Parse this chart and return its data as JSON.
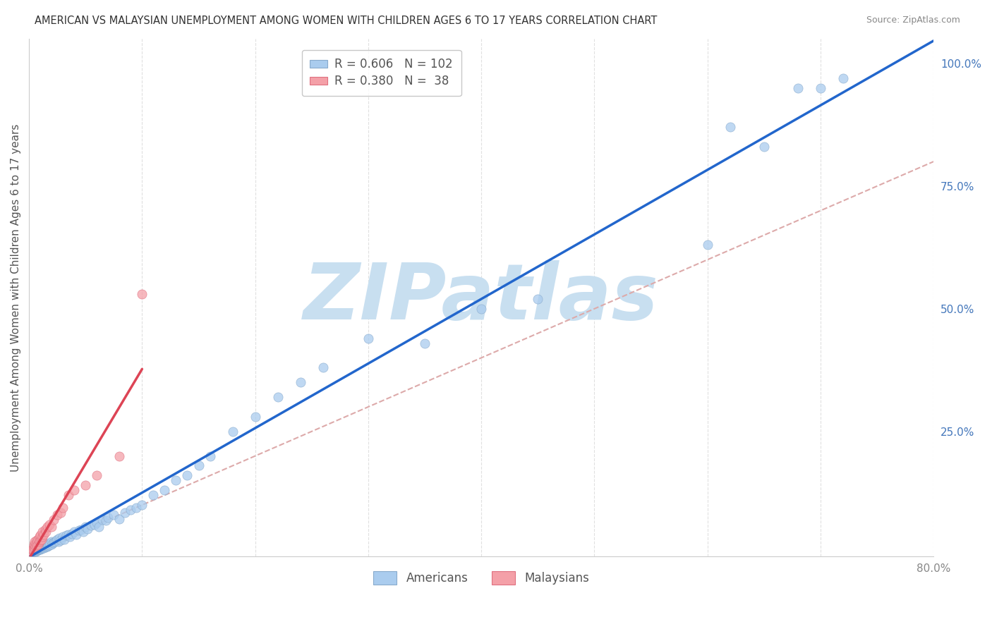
{
  "title": "AMERICAN VS MALAYSIAN UNEMPLOYMENT AMONG WOMEN WITH CHILDREN AGES 6 TO 17 YEARS CORRELATION CHART",
  "source": "Source: ZipAtlas.com",
  "ylabel": "Unemployment Among Women with Children Ages 6 to 17 years",
  "xlim": [
    0.0,
    0.8
  ],
  "ylim": [
    -0.005,
    1.05
  ],
  "americans_R": 0.606,
  "americans_N": 102,
  "malaysians_R": 0.38,
  "malaysians_N": 38,
  "american_color": "#aaccee",
  "american_edge_color": "#88aacc",
  "malaysian_color": "#f4a0a8",
  "malaysian_edge_color": "#e07080",
  "american_line_color": "#2266cc",
  "malaysian_line_color": "#dd4455",
  "identity_line_color": "#ddaaaa",
  "watermark": "ZIPatlas",
  "watermark_color_zip": "#c8dff0",
  "watermark_color_atlas": "#c8dff0",
  "background_color": "#ffffff",
  "grid_color": "#dddddd",
  "title_color": "#333333",
  "source_color": "#888888",
  "ylabel_color": "#555555",
  "tick_color_x": "#888888",
  "tick_color_right": "#4477bb",
  "legend_r_color": "#4477bb",
  "legend_n_color": "#cc4444",
  "americans_x": [
    0.003,
    0.004,
    0.004,
    0.005,
    0.005,
    0.005,
    0.006,
    0.006,
    0.006,
    0.006,
    0.007,
    0.007,
    0.007,
    0.007,
    0.008,
    0.008,
    0.008,
    0.008,
    0.009,
    0.009,
    0.009,
    0.009,
    0.01,
    0.01,
    0.01,
    0.01,
    0.01,
    0.011,
    0.011,
    0.011,
    0.012,
    0.012,
    0.012,
    0.013,
    0.013,
    0.014,
    0.014,
    0.015,
    0.015,
    0.016,
    0.016,
    0.017,
    0.017,
    0.018,
    0.018,
    0.02,
    0.02,
    0.021,
    0.022,
    0.023,
    0.024,
    0.025,
    0.026,
    0.027,
    0.028,
    0.03,
    0.031,
    0.033,
    0.035,
    0.036,
    0.038,
    0.04,
    0.042,
    0.044,
    0.046,
    0.048,
    0.05,
    0.052,
    0.055,
    0.058,
    0.06,
    0.062,
    0.065,
    0.068,
    0.07,
    0.075,
    0.08,
    0.085,
    0.09,
    0.095,
    0.1,
    0.11,
    0.12,
    0.13,
    0.14,
    0.15,
    0.16,
    0.18,
    0.2,
    0.22,
    0.24,
    0.26,
    0.3,
    0.35,
    0.4,
    0.45,
    0.6,
    0.62,
    0.65,
    0.68,
    0.7,
    0.72
  ],
  "americans_y": [
    0.004,
    0.005,
    0.006,
    0.005,
    0.006,
    0.007,
    0.006,
    0.007,
    0.008,
    0.009,
    0.007,
    0.008,
    0.009,
    0.01,
    0.008,
    0.009,
    0.01,
    0.011,
    0.009,
    0.01,
    0.011,
    0.012,
    0.01,
    0.011,
    0.012,
    0.013,
    0.014,
    0.011,
    0.013,
    0.015,
    0.012,
    0.014,
    0.016,
    0.013,
    0.015,
    0.014,
    0.017,
    0.015,
    0.018,
    0.016,
    0.019,
    0.017,
    0.02,
    0.018,
    0.022,
    0.02,
    0.025,
    0.022,
    0.024,
    0.026,
    0.028,
    0.03,
    0.025,
    0.032,
    0.028,
    0.035,
    0.03,
    0.038,
    0.04,
    0.035,
    0.042,
    0.045,
    0.04,
    0.048,
    0.05,
    0.045,
    0.055,
    0.052,
    0.058,
    0.06,
    0.065,
    0.055,
    0.07,
    0.068,
    0.075,
    0.08,
    0.072,
    0.085,
    0.09,
    0.095,
    0.1,
    0.12,
    0.13,
    0.15,
    0.16,
    0.18,
    0.2,
    0.25,
    0.28,
    0.32,
    0.35,
    0.38,
    0.44,
    0.43,
    0.5,
    0.52,
    0.63,
    0.87,
    0.83,
    0.95,
    0.95,
    0.97
  ],
  "malaysians_x": [
    0.002,
    0.003,
    0.003,
    0.004,
    0.004,
    0.004,
    0.005,
    0.005,
    0.005,
    0.006,
    0.006,
    0.007,
    0.007,
    0.008,
    0.008,
    0.009,
    0.009,
    0.01,
    0.01,
    0.011,
    0.012,
    0.012,
    0.013,
    0.014,
    0.015,
    0.016,
    0.018,
    0.02,
    0.022,
    0.025,
    0.028,
    0.03,
    0.035,
    0.04,
    0.05,
    0.06,
    0.08,
    0.1
  ],
  "malaysians_y": [
    0.006,
    0.008,
    0.01,
    0.01,
    0.015,
    0.02,
    0.012,
    0.018,
    0.025,
    0.015,
    0.022,
    0.018,
    0.028,
    0.02,
    0.03,
    0.025,
    0.035,
    0.028,
    0.038,
    0.03,
    0.035,
    0.045,
    0.04,
    0.05,
    0.045,
    0.055,
    0.06,
    0.055,
    0.07,
    0.08,
    0.085,
    0.095,
    0.12,
    0.13,
    0.14,
    0.16,
    0.2,
    0.53
  ],
  "american_line_x0": 0.0,
  "american_line_x1": 0.8,
  "malaysian_line_x0": 0.0,
  "malaysian_line_x1": 0.1,
  "identity_line_x0": 0.0,
  "identity_line_x1": 0.8
}
